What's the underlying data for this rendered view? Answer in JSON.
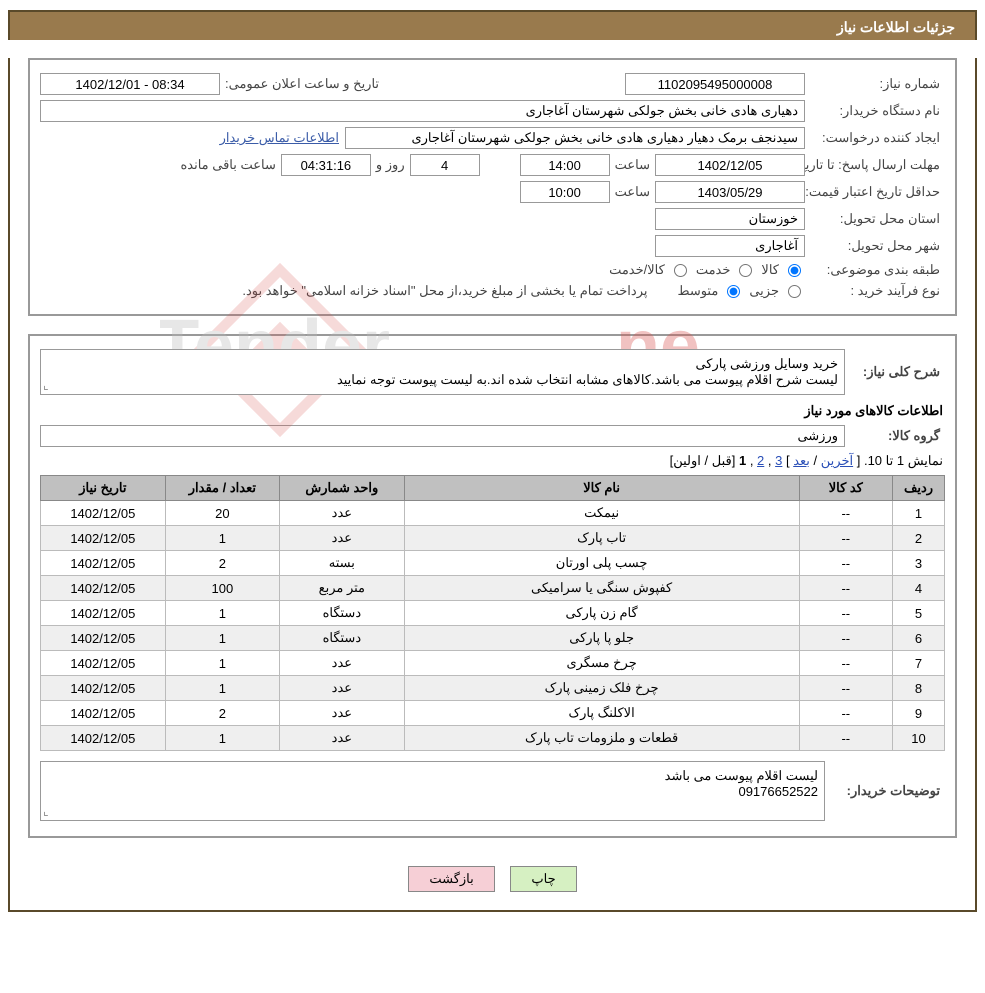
{
  "header": {
    "title": "جزئیات اطلاعات نیاز"
  },
  "info": {
    "need_no_label": "شماره نیاز:",
    "need_no": "1102095495000008",
    "ann_time_label": "تاریخ و ساعت اعلان عمومی:",
    "ann_time": "1402/12/01 - 08:34",
    "buyer_org_label": "نام دستگاه خریدار:",
    "buyer_org": "دهیاری هادی خانی بخش جولکی شهرستان آغاجاری",
    "requester_label": "ایجاد کننده درخواست:",
    "requester": "سیدنجف برمک دهیار دهیاری هادی خانی بخش جولکی شهرستان آغاجاری",
    "contact_link": "اطلاعات تماس خریدار",
    "deadline_label": "مهلت ارسال پاسخ:",
    "to_date_label": "تا تاریخ:",
    "deadline_date": "1402/12/05",
    "time_label": "ساعت",
    "deadline_time": "14:00",
    "days_and": "روز و",
    "days_left": "4",
    "countdown": "04:31:16",
    "remaining": "ساعت باقی مانده",
    "validity_label": "حداقل تاریخ اعتبار قیمت:",
    "validity_date": "1403/05/29",
    "validity_time": "10:00",
    "delivery_province_label": "استان محل تحویل:",
    "delivery_province": "خوزستان",
    "delivery_city_label": "شهر محل تحویل:",
    "delivery_city": "آغاجاری",
    "subject_class_label": "طبقه بندی موضوعی:",
    "radio_goods": "کالا",
    "radio_service": "خدمت",
    "radio_goods_service": "کالا/خدمت",
    "purchase_type_label": "نوع فرآیند خرید :",
    "radio_partial": "جزیی",
    "radio_medium": "متوسط",
    "payment_note": "پرداخت تمام یا بخشی از مبلغ خرید،از محل \"اسناد خزانه اسلامی\" خواهد بود."
  },
  "need_desc": {
    "label": "شرح کلی نیاز:",
    "text": "خرید وسایل ورزشی پارکی\nلیست شرح اقلام پیوست می باشد.کالاهای مشابه انتخاب شده اند.به لیست پیوست توجه نمایید"
  },
  "items_section": {
    "title": "اطلاعات کالاهای مورد نیاز",
    "group_label": "گروه کالا:",
    "group_value": "ورزشی"
  },
  "pager": {
    "showing": "نمایش 1 تا 10.",
    "last": "آخرین",
    "next": "بعد",
    "p3": "3",
    "p2": "2",
    "p1": "1",
    "prev_first": "[قبل / اولین]"
  },
  "table": {
    "headers": {
      "idx": "ردیف",
      "code": "کد کالا",
      "name": "نام کالا",
      "unit": "واحد شمارش",
      "qty": "تعداد / مقدار",
      "date": "تاریخ نیاز"
    },
    "rows": [
      {
        "idx": "1",
        "code": "--",
        "name": "نیمکت",
        "unit": "عدد",
        "qty": "20",
        "date": "1402/12/05"
      },
      {
        "idx": "2",
        "code": "--",
        "name": "تاب پارک",
        "unit": "عدد",
        "qty": "1",
        "date": "1402/12/05"
      },
      {
        "idx": "3",
        "code": "--",
        "name": "چسب پلی اورتان",
        "unit": "بسته",
        "qty": "2",
        "date": "1402/12/05"
      },
      {
        "idx": "4",
        "code": "--",
        "name": "کفپوش سنگی یا سرامیکی",
        "unit": "متر مربع",
        "qty": "100",
        "date": "1402/12/05"
      },
      {
        "idx": "5",
        "code": "--",
        "name": "گام زن پارکی",
        "unit": "دستگاه",
        "qty": "1",
        "date": "1402/12/05"
      },
      {
        "idx": "6",
        "code": "--",
        "name": "جلو پا پارکی",
        "unit": "دستگاه",
        "qty": "1",
        "date": "1402/12/05"
      },
      {
        "idx": "7",
        "code": "--",
        "name": "چرخ مسگری",
        "unit": "عدد",
        "qty": "1",
        "date": "1402/12/05"
      },
      {
        "idx": "8",
        "code": "--",
        "name": "چرخ فلک زمینی پارک",
        "unit": "عدد",
        "qty": "1",
        "date": "1402/12/05"
      },
      {
        "idx": "9",
        "code": "--",
        "name": "الاکلنگ پارک",
        "unit": "عدد",
        "qty": "2",
        "date": "1402/12/05"
      },
      {
        "idx": "10",
        "code": "--",
        "name": "قطعات و ملزومات تاب پارک",
        "unit": "عدد",
        "qty": "1",
        "date": "1402/12/05"
      }
    ]
  },
  "buyer_notes": {
    "label": "توضیحات خریدار:",
    "text": "لیست اقلام پیوست می باشد\n09176652522"
  },
  "buttons": {
    "print": "چاپ",
    "back": "بازگشت"
  },
  "colors": {
    "header_bg": "#997a4d",
    "header_border": "#5a4a2a",
    "section_border": "#999999",
    "th_bg": "#c0c0c0",
    "row_alt_bg": "#efefef",
    "link": "#2a4fb7",
    "btn_green": "#d6f0c2",
    "btn_pink": "#f6cfd6",
    "watermark": "#d9534f"
  }
}
